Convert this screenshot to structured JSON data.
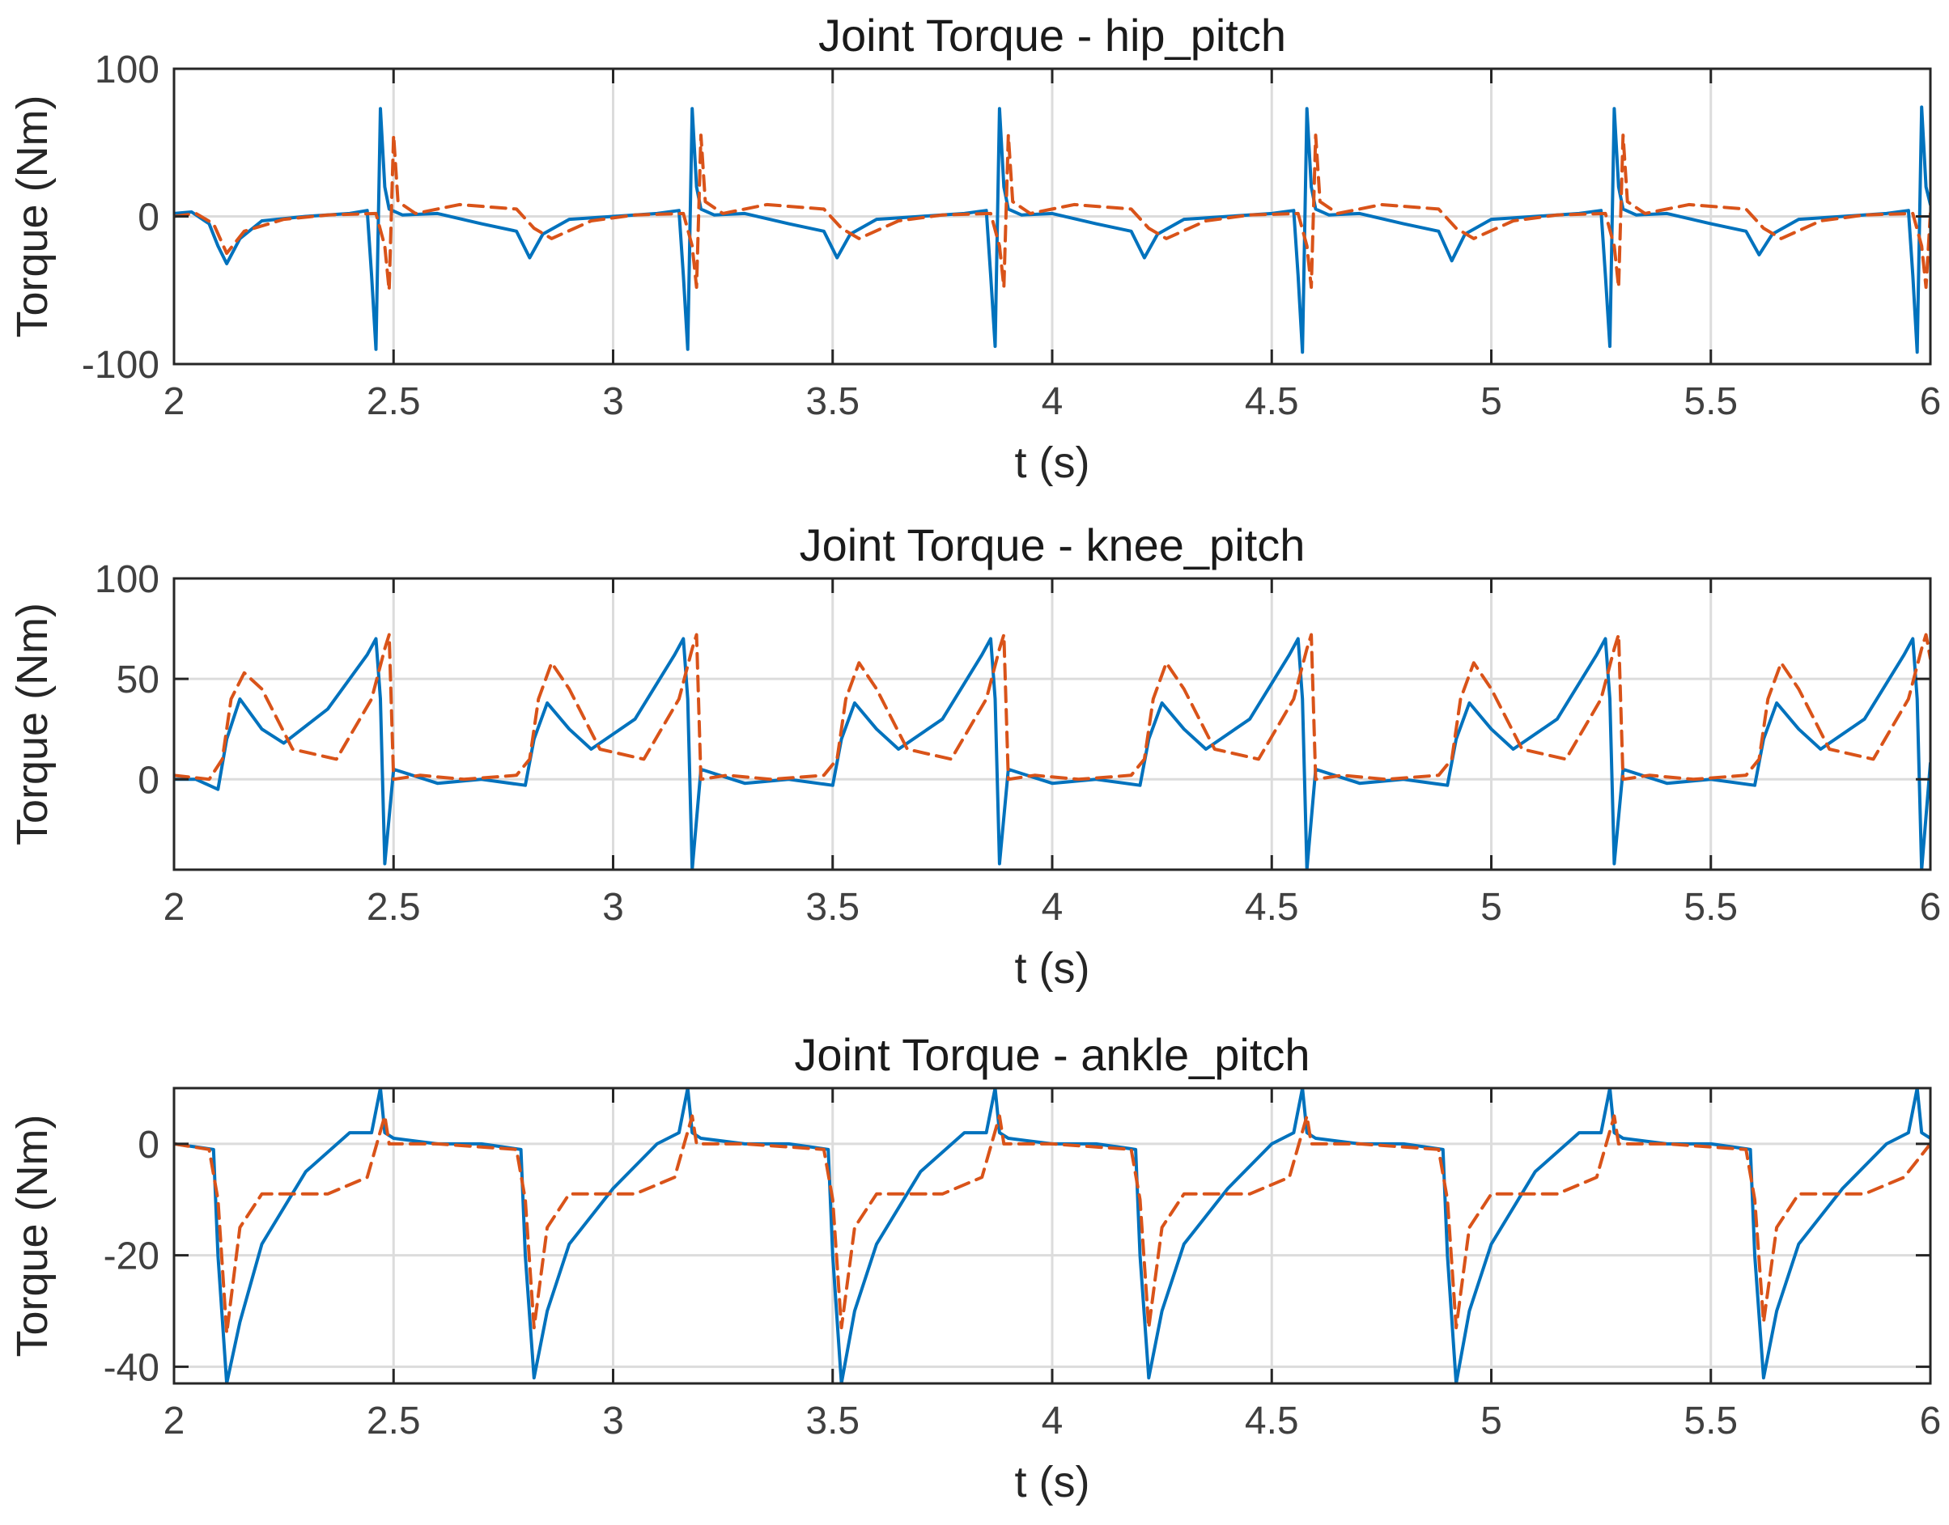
{
  "colors": {
    "series_1": "#0072BD",
    "series_2": "#D95319"
  },
  "chart_data": [
    {
      "type": "line",
      "title": "Joint Torque - hip_pitch",
      "xlabel": "t (s)",
      "ylabel": "Torque (Nm)",
      "xlim": [
        2,
        6
      ],
      "ylim": [
        -100,
        100
      ],
      "grid": true,
      "xticks": [
        2,
        2.5,
        3,
        3.5,
        4,
        4.5,
        5,
        5.5,
        6
      ],
      "xtick_labels": [
        "2",
        "2.5",
        "3",
        "3.5",
        "4",
        "4.5",
        "5",
        "5.5",
        "6"
      ],
      "yticks": [
        -100,
        0,
        100
      ],
      "ytick_labels": [
        "-100",
        "0",
        "100"
      ],
      "series": [
        {
          "name": "series 1",
          "style": "solid",
          "color": "#0072BD",
          "x": [
            2.0,
            2.04,
            2.08,
            2.1,
            2.12,
            2.15,
            2.2,
            2.3,
            2.4,
            2.44,
            2.45,
            2.46,
            2.47,
            2.48,
            2.49,
            2.52,
            2.6,
            2.7,
            2.78,
            2.81,
            2.84,
            2.9,
            3.0,
            3.1,
            3.15,
            3.16,
            3.17,
            3.18,
            3.19,
            3.2,
            3.23,
            3.3,
            3.4,
            3.48,
            3.51,
            3.54,
            3.6,
            3.7,
            3.8,
            3.85,
            3.86,
            3.87,
            3.88,
            3.89,
            3.9,
            3.93,
            4.0,
            4.1,
            4.18,
            4.21,
            4.24,
            4.3,
            4.4,
            4.5,
            4.55,
            4.56,
            4.57,
            4.58,
            4.59,
            4.6,
            4.63,
            4.7,
            4.8,
            4.88,
            4.91,
            4.94,
            5.0,
            5.1,
            5.2,
            5.25,
            5.26,
            5.27,
            5.28,
            5.29,
            5.3,
            5.33,
            5.4,
            5.5,
            5.58,
            5.61,
            5.64,
            5.7,
            5.8,
            5.9,
            5.95,
            5.96,
            5.97,
            5.98,
            5.99,
            6.0
          ],
          "y": [
            2,
            3,
            -5,
            -20,
            -32,
            -15,
            -3,
            0,
            2,
            4,
            -40,
            -90,
            73,
            20,
            5,
            1,
            2,
            -5,
            -10,
            -28,
            -12,
            -2,
            0,
            2,
            4,
            -40,
            -90,
            73,
            20,
            5,
            1,
            2,
            -5,
            -10,
            -28,
            -12,
            -2,
            0,
            2,
            4,
            -40,
            -88,
            73,
            20,
            5,
            1,
            2,
            -5,
            -10,
            -28,
            -12,
            -2,
            0,
            2,
            4,
            -40,
            -92,
            73,
            20,
            5,
            1,
            2,
            -5,
            -10,
            -30,
            -12,
            -2,
            0,
            2,
            4,
            -40,
            -88,
            73,
            20,
            5,
            1,
            2,
            -5,
            -10,
            -26,
            -12,
            -2,
            0,
            2,
            4,
            -40,
            -92,
            74,
            20,
            8
          ]
        },
        {
          "name": "series 2",
          "style": "dashed",
          "color": "#D95319",
          "x": [
            2.0,
            2.05,
            2.09,
            2.12,
            2.16,
            2.25,
            2.35,
            2.46,
            2.48,
            2.49,
            2.5,
            2.51,
            2.55,
            2.65,
            2.78,
            2.82,
            2.86,
            2.95,
            3.05,
            3.16,
            3.18,
            3.19,
            3.2,
            3.21,
            3.25,
            3.35,
            3.48,
            3.52,
            3.56,
            3.65,
            3.75,
            3.86,
            3.88,
            3.89,
            3.9,
            3.91,
            3.95,
            4.05,
            4.18,
            4.22,
            4.26,
            4.35,
            4.45,
            4.56,
            4.58,
            4.59,
            4.6,
            4.61,
            4.65,
            4.75,
            4.88,
            4.92,
            4.96,
            5.05,
            5.15,
            5.26,
            5.28,
            5.29,
            5.3,
            5.31,
            5.35,
            5.45,
            5.58,
            5.62,
            5.66,
            5.75,
            5.85,
            5.96,
            5.98,
            5.99,
            6.0
          ],
          "y": [
            0,
            2,
            -5,
            -25,
            -10,
            -2,
            1,
            2,
            -20,
            -50,
            55,
            10,
            2,
            8,
            5,
            -8,
            -15,
            -3,
            1,
            2,
            -20,
            -48,
            55,
            10,
            2,
            8,
            5,
            -8,
            -15,
            -3,
            1,
            2,
            -20,
            -48,
            55,
            10,
            2,
            8,
            5,
            -8,
            -15,
            -3,
            1,
            2,
            -20,
            -48,
            55,
            10,
            2,
            8,
            5,
            -8,
            -15,
            -3,
            1,
            2,
            -20,
            -48,
            55,
            10,
            2,
            8,
            5,
            -8,
            -15,
            -3,
            1,
            2,
            -20,
            -48,
            2
          ]
        }
      ]
    },
    {
      "type": "line",
      "title": "Joint Torque - knee_pitch",
      "xlabel": "t (s)",
      "ylabel": "Torque (Nm)",
      "xlim": [
        2,
        6
      ],
      "ylim": [
        -45,
        100
      ],
      "grid": true,
      "xticks": [
        2,
        2.5,
        3,
        3.5,
        4,
        4.5,
        5,
        5.5,
        6
      ],
      "xtick_labels": [
        "2",
        "2.5",
        "3",
        "3.5",
        "4",
        "4.5",
        "5",
        "5.5",
        "6"
      ],
      "yticks": [
        0,
        50,
        100
      ],
      "ytick_labels": [
        "0",
        "50",
        "100"
      ],
      "series": [
        {
          "name": "series 1",
          "style": "solid",
          "color": "#0072BD",
          "x": [
            2.0,
            2.05,
            2.1,
            2.12,
            2.15,
            2.2,
            2.25,
            2.35,
            2.44,
            2.46,
            2.47,
            2.48,
            2.5,
            2.6,
            2.7,
            2.8,
            2.82,
            2.85,
            2.9,
            2.95,
            3.05,
            3.14,
            3.16,
            3.17,
            3.18,
            3.2,
            3.3,
            3.4,
            3.5,
            3.52,
            3.55,
            3.6,
            3.65,
            3.75,
            3.84,
            3.86,
            3.87,
            3.88,
            3.9,
            4.0,
            4.1,
            4.2,
            4.22,
            4.25,
            4.3,
            4.35,
            4.45,
            4.54,
            4.56,
            4.57,
            4.58,
            4.6,
            4.7,
            4.8,
            4.9,
            4.92,
            4.95,
            5.0,
            5.05,
            5.15,
            5.24,
            5.26,
            5.27,
            5.28,
            5.3,
            5.4,
            5.5,
            5.6,
            5.62,
            5.65,
            5.7,
            5.75,
            5.85,
            5.94,
            5.96,
            5.97,
            5.98,
            6.0
          ],
          "y": [
            0,
            0,
            -5,
            20,
            40,
            25,
            18,
            35,
            62,
            70,
            40,
            -42,
            5,
            -2,
            0,
            -3,
            20,
            38,
            25,
            15,
            30,
            62,
            70,
            40,
            -45,
            5,
            -2,
            0,
            -3,
            20,
            38,
            25,
            15,
            30,
            62,
            70,
            40,
            -42,
            5,
            -2,
            0,
            -3,
            20,
            38,
            25,
            15,
            30,
            62,
            70,
            40,
            -45,
            5,
            -2,
            0,
            -3,
            20,
            38,
            25,
            15,
            30,
            62,
            70,
            40,
            -42,
            5,
            -2,
            0,
            -3,
            20,
            38,
            25,
            15,
            30,
            62,
            70,
            40,
            -45,
            8
          ]
        },
        {
          "name": "series 2",
          "style": "dashed",
          "color": "#D95319",
          "x": [
            2.0,
            2.08,
            2.11,
            2.13,
            2.16,
            2.2,
            2.27,
            2.37,
            2.45,
            2.48,
            2.49,
            2.5,
            2.56,
            2.66,
            2.78,
            2.81,
            2.83,
            2.86,
            2.9,
            2.97,
            3.07,
            3.15,
            3.18,
            3.19,
            3.2,
            3.26,
            3.36,
            3.48,
            3.51,
            3.53,
            3.56,
            3.6,
            3.67,
            3.77,
            3.85,
            3.88,
            3.89,
            3.9,
            3.96,
            4.06,
            4.18,
            4.21,
            4.23,
            4.26,
            4.3,
            4.37,
            4.47,
            4.55,
            4.58,
            4.59,
            4.6,
            4.66,
            4.76,
            4.88,
            4.91,
            4.93,
            4.96,
            5.0,
            5.07,
            5.17,
            5.25,
            5.28,
            5.29,
            5.3,
            5.36,
            5.46,
            5.58,
            5.61,
            5.63,
            5.66,
            5.7,
            5.77,
            5.87,
            5.95,
            5.98,
            5.99,
            6.0
          ],
          "y": [
            2,
            0,
            10,
            40,
            53,
            45,
            15,
            10,
            40,
            65,
            72,
            0,
            2,
            0,
            2,
            10,
            40,
            58,
            45,
            15,
            10,
            40,
            65,
            72,
            0,
            2,
            0,
            2,
            10,
            40,
            58,
            45,
            15,
            10,
            40,
            65,
            72,
            0,
            2,
            0,
            2,
            10,
            40,
            58,
            45,
            15,
            10,
            40,
            65,
            72,
            0,
            2,
            0,
            2,
            10,
            40,
            58,
            45,
            15,
            10,
            40,
            65,
            72,
            0,
            2,
            0,
            2,
            10,
            40,
            58,
            45,
            15,
            10,
            40,
            65,
            72,
            60
          ]
        }
      ]
    },
    {
      "type": "line",
      "title": "Joint Torque - ankle_pitch",
      "xlabel": "t (s)",
      "ylabel": "Torque (Nm)",
      "xlim": [
        2,
        6
      ],
      "ylim": [
        -43,
        10
      ],
      "grid": true,
      "xticks": [
        2,
        2.5,
        3,
        3.5,
        4,
        4.5,
        5,
        5.5,
        6
      ],
      "xtick_labels": [
        "2",
        "2.5",
        "3",
        "3.5",
        "4",
        "4.5",
        "5",
        "5.5",
        "6"
      ],
      "yticks": [
        -40,
        -20,
        0
      ],
      "ytick_labels": [
        "-40",
        "-20",
        "0"
      ],
      "series": [
        {
          "name": "series 1",
          "style": "solid",
          "color": "#0072BD",
          "x": [
            2.0,
            2.09,
            2.1,
            2.12,
            2.15,
            2.2,
            2.3,
            2.4,
            2.45,
            2.47,
            2.48,
            2.5,
            2.6,
            2.7,
            2.79,
            2.8,
            2.82,
            2.85,
            2.9,
            3.0,
            3.1,
            3.15,
            3.17,
            3.18,
            3.2,
            3.3,
            3.4,
            3.49,
            3.5,
            3.52,
            3.55,
            3.6,
            3.7,
            3.8,
            3.85,
            3.87,
            3.88,
            3.9,
            4.0,
            4.1,
            4.19,
            4.2,
            4.22,
            4.25,
            4.3,
            4.4,
            4.5,
            4.55,
            4.57,
            4.58,
            4.6,
            4.7,
            4.8,
            4.89,
            4.9,
            4.92,
            4.95,
            5.0,
            5.1,
            5.2,
            5.25,
            5.27,
            5.28,
            5.3,
            5.4,
            5.5,
            5.59,
            5.6,
            5.62,
            5.65,
            5.7,
            5.8,
            5.9,
            5.95,
            5.97,
            5.98,
            6.0
          ],
          "y": [
            0,
            -1,
            -20,
            -43,
            -32,
            -18,
            -5,
            2,
            2,
            10,
            2,
            1,
            0,
            0,
            -1,
            -20,
            -42,
            -30,
            -18,
            -8,
            0,
            2,
            10,
            2,
            1,
            0,
            0,
            -1,
            -20,
            -43,
            -30,
            -18,
            -5,
            2,
            2,
            10,
            2,
            1,
            0,
            0,
            -1,
            -20,
            -42,
            -30,
            -18,
            -8,
            0,
            2,
            10,
            2,
            1,
            0,
            0,
            -1,
            -20,
            -43,
            -30,
            -18,
            -5,
            2,
            2,
            10,
            2,
            1,
            0,
            0,
            -1,
            -20,
            -42,
            -30,
            -18,
            -8,
            0,
            2,
            10,
            2,
            1
          ]
        },
        {
          "name": "series 2",
          "style": "dashed",
          "color": "#D95319",
          "x": [
            2.0,
            2.08,
            2.1,
            2.12,
            2.15,
            2.2,
            2.35,
            2.44,
            2.48,
            2.49,
            2.5,
            2.6,
            2.78,
            2.8,
            2.82,
            2.85,
            2.9,
            3.05,
            3.14,
            3.18,
            3.19,
            3.2,
            3.3,
            3.48,
            3.5,
            3.52,
            3.55,
            3.6,
            3.75,
            3.84,
            3.88,
            3.89,
            3.9,
            4.0,
            4.18,
            4.2,
            4.22,
            4.25,
            4.3,
            4.45,
            4.54,
            4.58,
            4.59,
            4.6,
            4.7,
            4.88,
            4.9,
            4.92,
            4.95,
            5.0,
            5.15,
            5.24,
            5.28,
            5.29,
            5.3,
            5.4,
            5.58,
            5.6,
            5.62,
            5.65,
            5.7,
            5.85,
            5.94,
            5.98,
            5.99,
            6.0
          ],
          "y": [
            0,
            -1,
            -10,
            -34,
            -15,
            -9,
            -9,
            -6,
            5,
            0,
            0,
            0,
            -1,
            -10,
            -33,
            -15,
            -9,
            -9,
            -6,
            5,
            0,
            0,
            0,
            -1,
            -10,
            -33,
            -15,
            -9,
            -9,
            -6,
            5,
            0,
            0,
            0,
            -1,
            -10,
            -33,
            -15,
            -9,
            -9,
            -6,
            5,
            0,
            0,
            0,
            -1,
            -10,
            -33,
            -15,
            -9,
            -9,
            -6,
            5,
            0,
            0,
            0,
            -1,
            -10,
            -32,
            -15,
            -9,
            -9,
            -6,
            -2,
            -1,
            0
          ]
        }
      ]
    }
  ]
}
